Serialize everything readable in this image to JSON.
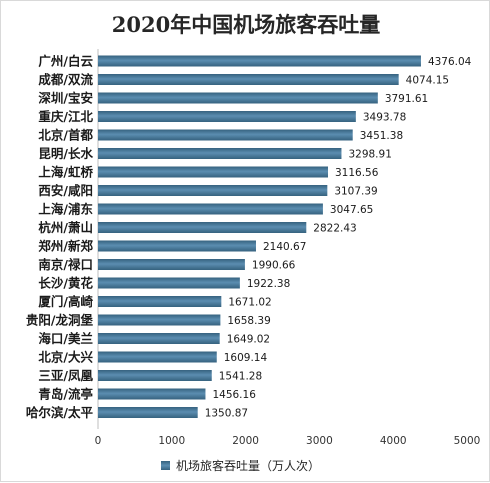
{
  "colors": {
    "bar": "#5b8db0",
    "bar_dark": "#36627f",
    "axis": "#bfbfbf"
  },
  "chart_data": {
    "type": "bar",
    "orientation": "horizontal",
    "title": "2020年中国机场旅客吞吐量",
    "categories": [
      "广州/白云",
      "成都/双流",
      "深圳/宝安",
      "重庆/江北",
      "北京/首都",
      "昆明/长水",
      "上海/虹桥",
      "西安/咸阳",
      "上海/浦东",
      "杭州/萧山",
      "郑州/新郑",
      "南京/禄口",
      "长沙/黄花",
      "厦门/高崎",
      "贵阳/龙洞堡",
      "海口/美兰",
      "北京/大兴",
      "三亚/凤凰",
      "青岛/流亭",
      "哈尔滨/太平"
    ],
    "series": [
      {
        "name": "机场旅客吞吐量（万人次）",
        "values": [
          4376.04,
          4074.15,
          3791.61,
          3493.78,
          3451.38,
          3298.91,
          3116.56,
          3107.39,
          3047.65,
          2822.43,
          2140.67,
          1990.66,
          1922.38,
          1671.02,
          1658.39,
          1649.02,
          1609.14,
          1541.28,
          1456.16,
          1350.87
        ]
      }
    ],
    "value_labels": [
      "4376.04",
      "4074.15",
      "3791.61",
      "3493.78",
      "3451.38",
      "3298.91",
      "3116.56",
      "3107.39",
      "3047.65",
      "2822.43",
      "2140.67",
      "1990.66",
      "1922.38",
      "1671.02",
      "1658.39",
      "1649.02",
      "1609.14",
      "1541.28",
      "1456.16",
      "1350.87"
    ],
    "x_ticks": [
      "0",
      "1000",
      "2000",
      "3000",
      "4000",
      "5000"
    ],
    "xlim": [
      0,
      5000
    ],
    "grid": false,
    "legend_position": "bottom"
  }
}
